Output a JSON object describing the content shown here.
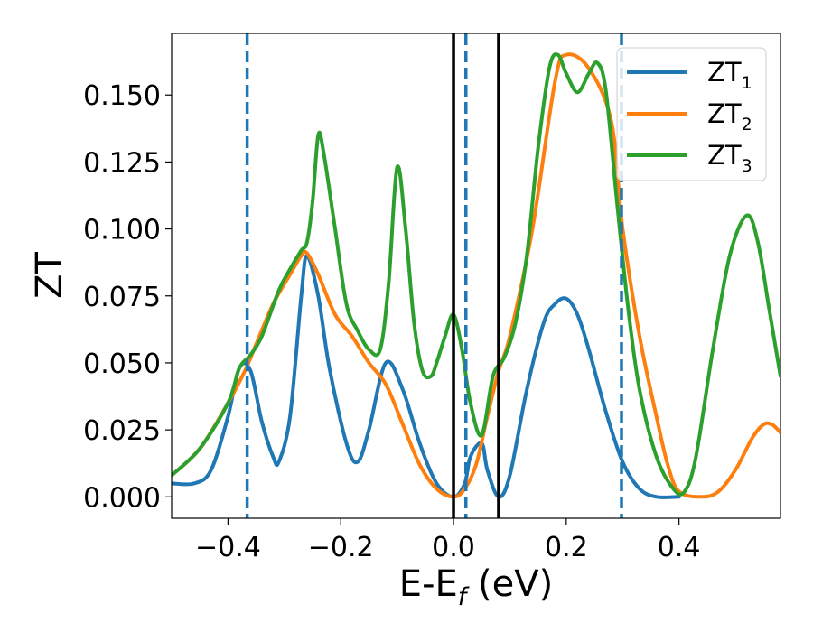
{
  "chart_data": {
    "type": "line",
    "title": "",
    "xlabel": {
      "base": "E-E",
      "sub": "f",
      "suffix": " (eV)"
    },
    "ylabel": "ZT",
    "xlim": [
      -0.5,
      0.58
    ],
    "ylim": [
      -0.008,
      0.173
    ],
    "xticks": [
      -0.4,
      -0.2,
      0.0,
      0.2,
      0.4
    ],
    "xtick_labels": [
      "−0.4",
      "−0.2",
      "0.0",
      "0.2",
      "0.4"
    ],
    "yticks": [
      0.0,
      0.025,
      0.05,
      0.075,
      0.1,
      0.125,
      0.15
    ],
    "ytick_labels": [
      "0.000",
      "0.025",
      "0.050",
      "0.075",
      "0.100",
      "0.125",
      "0.150"
    ],
    "grid": false,
    "legend_position": "top-right",
    "series": [
      {
        "name": "ZT",
        "sub": "1",
        "color": "#1f77b4",
        "x": [
          -0.5,
          -0.46,
          -0.43,
          -0.4,
          -0.38,
          -0.36,
          -0.34,
          -0.32,
          -0.31,
          -0.29,
          -0.27,
          -0.26,
          -0.24,
          -0.22,
          -0.19,
          -0.17,
          -0.15,
          -0.12,
          -0.09,
          -0.06,
          -0.03,
          0.0,
          0.02,
          0.03,
          0.05,
          0.06,
          0.08,
          0.1,
          0.13,
          0.16,
          0.18,
          0.2,
          0.22,
          0.24,
          0.27,
          0.3,
          0.33,
          0.36,
          0.4
        ],
        "y": [
          0.005,
          0.005,
          0.01,
          0.03,
          0.048,
          0.047,
          0.028,
          0.015,
          0.013,
          0.03,
          0.075,
          0.09,
          0.075,
          0.048,
          0.02,
          0.013,
          0.025,
          0.05,
          0.04,
          0.02,
          0.005,
          0.0,
          0.005,
          0.015,
          0.02,
          0.01,
          0.0,
          0.008,
          0.04,
          0.065,
          0.072,
          0.074,
          0.068,
          0.055,
          0.032,
          0.013,
          0.003,
          0.0,
          0.0
        ]
      },
      {
        "name": "ZT",
        "sub": "2",
        "color": "#ff7f0e",
        "x": [
          -0.5,
          -0.45,
          -0.4,
          -0.37,
          -0.35,
          -0.32,
          -0.29,
          -0.27,
          -0.26,
          -0.24,
          -0.21,
          -0.18,
          -0.15,
          -0.12,
          -0.09,
          -0.06,
          -0.03,
          0.0,
          0.02,
          0.04,
          0.06,
          0.08,
          0.1,
          0.14,
          0.18,
          0.2,
          0.24,
          0.28,
          0.3,
          0.33,
          0.36,
          0.38,
          0.4,
          0.44,
          0.47,
          0.5,
          0.53,
          0.55,
          0.565,
          0.58
        ],
        "y": [
          0.008,
          0.018,
          0.035,
          0.047,
          0.057,
          0.072,
          0.083,
          0.09,
          0.091,
          0.083,
          0.068,
          0.06,
          0.05,
          0.042,
          0.027,
          0.012,
          0.003,
          0.0,
          0.003,
          0.012,
          0.03,
          0.047,
          0.06,
          0.1,
          0.155,
          0.165,
          0.16,
          0.14,
          0.1,
          0.06,
          0.03,
          0.012,
          0.002,
          0.0,
          0.002,
          0.01,
          0.022,
          0.027,
          0.027,
          0.024
        ]
      },
      {
        "name": "ZT",
        "sub": "3",
        "color": "#2ca02c",
        "x": [
          -0.5,
          -0.45,
          -0.4,
          -0.38,
          -0.36,
          -0.34,
          -0.31,
          -0.29,
          -0.27,
          -0.26,
          -0.25,
          -0.24,
          -0.23,
          -0.21,
          -0.19,
          -0.17,
          -0.15,
          -0.13,
          -0.115,
          -0.1,
          -0.085,
          -0.07,
          -0.055,
          -0.04,
          -0.03,
          -0.015,
          0.0,
          0.015,
          0.03,
          0.05,
          0.07,
          0.09,
          0.11,
          0.13,
          0.15,
          0.17,
          0.185,
          0.2,
          0.22,
          0.24,
          0.255,
          0.27,
          0.29,
          0.31,
          0.33,
          0.36,
          0.39,
          0.41,
          0.43,
          0.46,
          0.49,
          0.52,
          0.54,
          0.56,
          0.58
        ],
        "y": [
          0.008,
          0.018,
          0.035,
          0.048,
          0.053,
          0.06,
          0.077,
          0.085,
          0.092,
          0.095,
          0.11,
          0.135,
          0.128,
          0.1,
          0.072,
          0.062,
          0.055,
          0.055,
          0.08,
          0.123,
          0.1,
          0.065,
          0.047,
          0.045,
          0.05,
          0.06,
          0.068,
          0.055,
          0.035,
          0.023,
          0.045,
          0.052,
          0.065,
          0.09,
          0.13,
          0.16,
          0.165,
          0.158,
          0.151,
          0.158,
          0.162,
          0.152,
          0.11,
          0.07,
          0.04,
          0.015,
          0.003,
          0.002,
          0.015,
          0.055,
          0.09,
          0.105,
          0.095,
          0.07,
          0.045
        ]
      }
    ],
    "vlines": [
      {
        "x": -0.366,
        "style": "dashed",
        "color": "#1f77b4"
      },
      {
        "x": 0.022,
        "style": "dashed",
        "color": "#1f77b4"
      },
      {
        "x": 0.298,
        "style": "dashed",
        "color": "#1f77b4"
      },
      {
        "x": 0.0,
        "style": "solid",
        "color": "#000000"
      },
      {
        "x": 0.08,
        "style": "solid",
        "color": "#000000"
      }
    ]
  }
}
